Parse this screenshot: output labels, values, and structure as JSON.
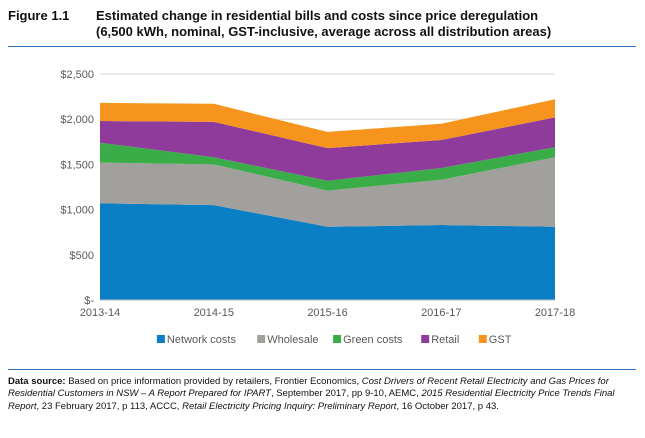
{
  "figure": {
    "number": "Figure 1.1",
    "title_line1": "Estimated change in residential bills and costs since price deregulation",
    "title_line2": "(6,500 kWh, nominal, GST-inclusive, average across all distribution areas)"
  },
  "chart_data": {
    "type": "area",
    "stacked": true,
    "categories": [
      "2013-14",
      "2014-15",
      "2015-16",
      "2016-17",
      "2017-18"
    ],
    "series": [
      {
        "name": "Network costs",
        "color": "#0a7fc6",
        "values": [
          1070,
          1050,
          810,
          830,
          810
        ]
      },
      {
        "name": "Wholesale",
        "color": "#a2a09c",
        "values": [
          450,
          450,
          400,
          500,
          770
        ]
      },
      {
        "name": "Green costs",
        "color": "#3aad49",
        "values": [
          220,
          80,
          110,
          130,
          110
        ]
      },
      {
        "name": "Retail",
        "color": "#8f3b9c",
        "values": [
          240,
          390,
          360,
          310,
          330
        ]
      },
      {
        "name": "GST",
        "color": "#f7941d",
        "values": [
          200,
          200,
          180,
          180,
          200
        ]
      }
    ],
    "yticks": [
      "$-",
      "$500",
      "$1,000",
      "$1,500",
      "$2,000",
      "$2,500"
    ],
    "ylim": [
      0,
      2500
    ],
    "legend_position": "bottom"
  },
  "source": {
    "label": "Data source:",
    "t1": " Based on price information provided by retailers, Frontier Economics, ",
    "i1": "Cost Drivers of Recent Retail Electricity and Gas Prices for Residential Customers in NSW – A Report Prepared for IPART",
    "t2": ", September 2017, pp 9-10, AEMC, ",
    "i2": "2015 Residential Electricity Price Trends Final Report",
    "t3": ", 23 February 2017, p 113, ACCC, ",
    "i3": "Retail Electricity Pricing Inquiry: Preliminary Report",
    "t4": ", 16 October 2017, p 43."
  }
}
